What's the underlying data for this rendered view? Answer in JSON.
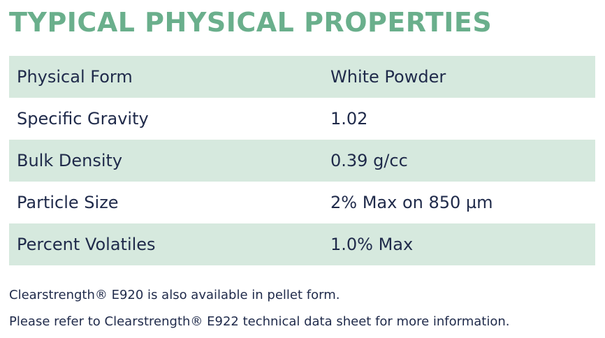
{
  "title": "TYPICAL PHYSICAL PROPERTIES",
  "properties": [
    {
      "label": "Physical Form",
      "value": "White Powder"
    },
    {
      "label": "Specific Gravity",
      "value": "1.02"
    },
    {
      "label": "Bulk Density",
      "value": "0.39 g/cc"
    },
    {
      "label": "Particle Size",
      "value": "2% Max on 850 µm"
    },
    {
      "label": "Percent Volatiles",
      "value": "1.0% Max"
    }
  ],
  "notes": [
    "Clearstrength® E920 is also available in pellet form.",
    "Please refer to Clearstrength® E922 technical data sheet for more information."
  ],
  "colors": {
    "title": "#6aaf8c",
    "row_shade": "#d6e9de",
    "text": "#1f2a4a"
  }
}
